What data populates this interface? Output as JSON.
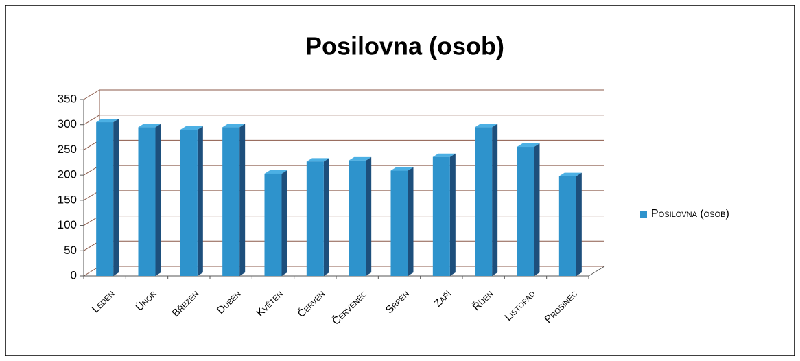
{
  "chart_data": {
    "type": "bar",
    "title": "Posilovna (osob)",
    "categories": [
      "Leden",
      "Únor",
      "Březen",
      "Duben",
      "Květen",
      "Červen",
      "Červenec",
      "Srpen",
      "Září",
      "Říjen",
      "Listopad",
      "Prosinec"
    ],
    "series": [
      {
        "name": "Posilovna (osob)",
        "color": "#2e93cc",
        "values": [
          305,
          295,
          290,
          295,
          203,
          227,
          229,
          209,
          236,
          295,
          256,
          198
        ]
      }
    ],
    "ylim": [
      0,
      350
    ],
    "yticks": [
      0,
      50,
      100,
      150,
      200,
      250,
      300,
      350
    ],
    "grid": true,
    "legend": "right"
  }
}
